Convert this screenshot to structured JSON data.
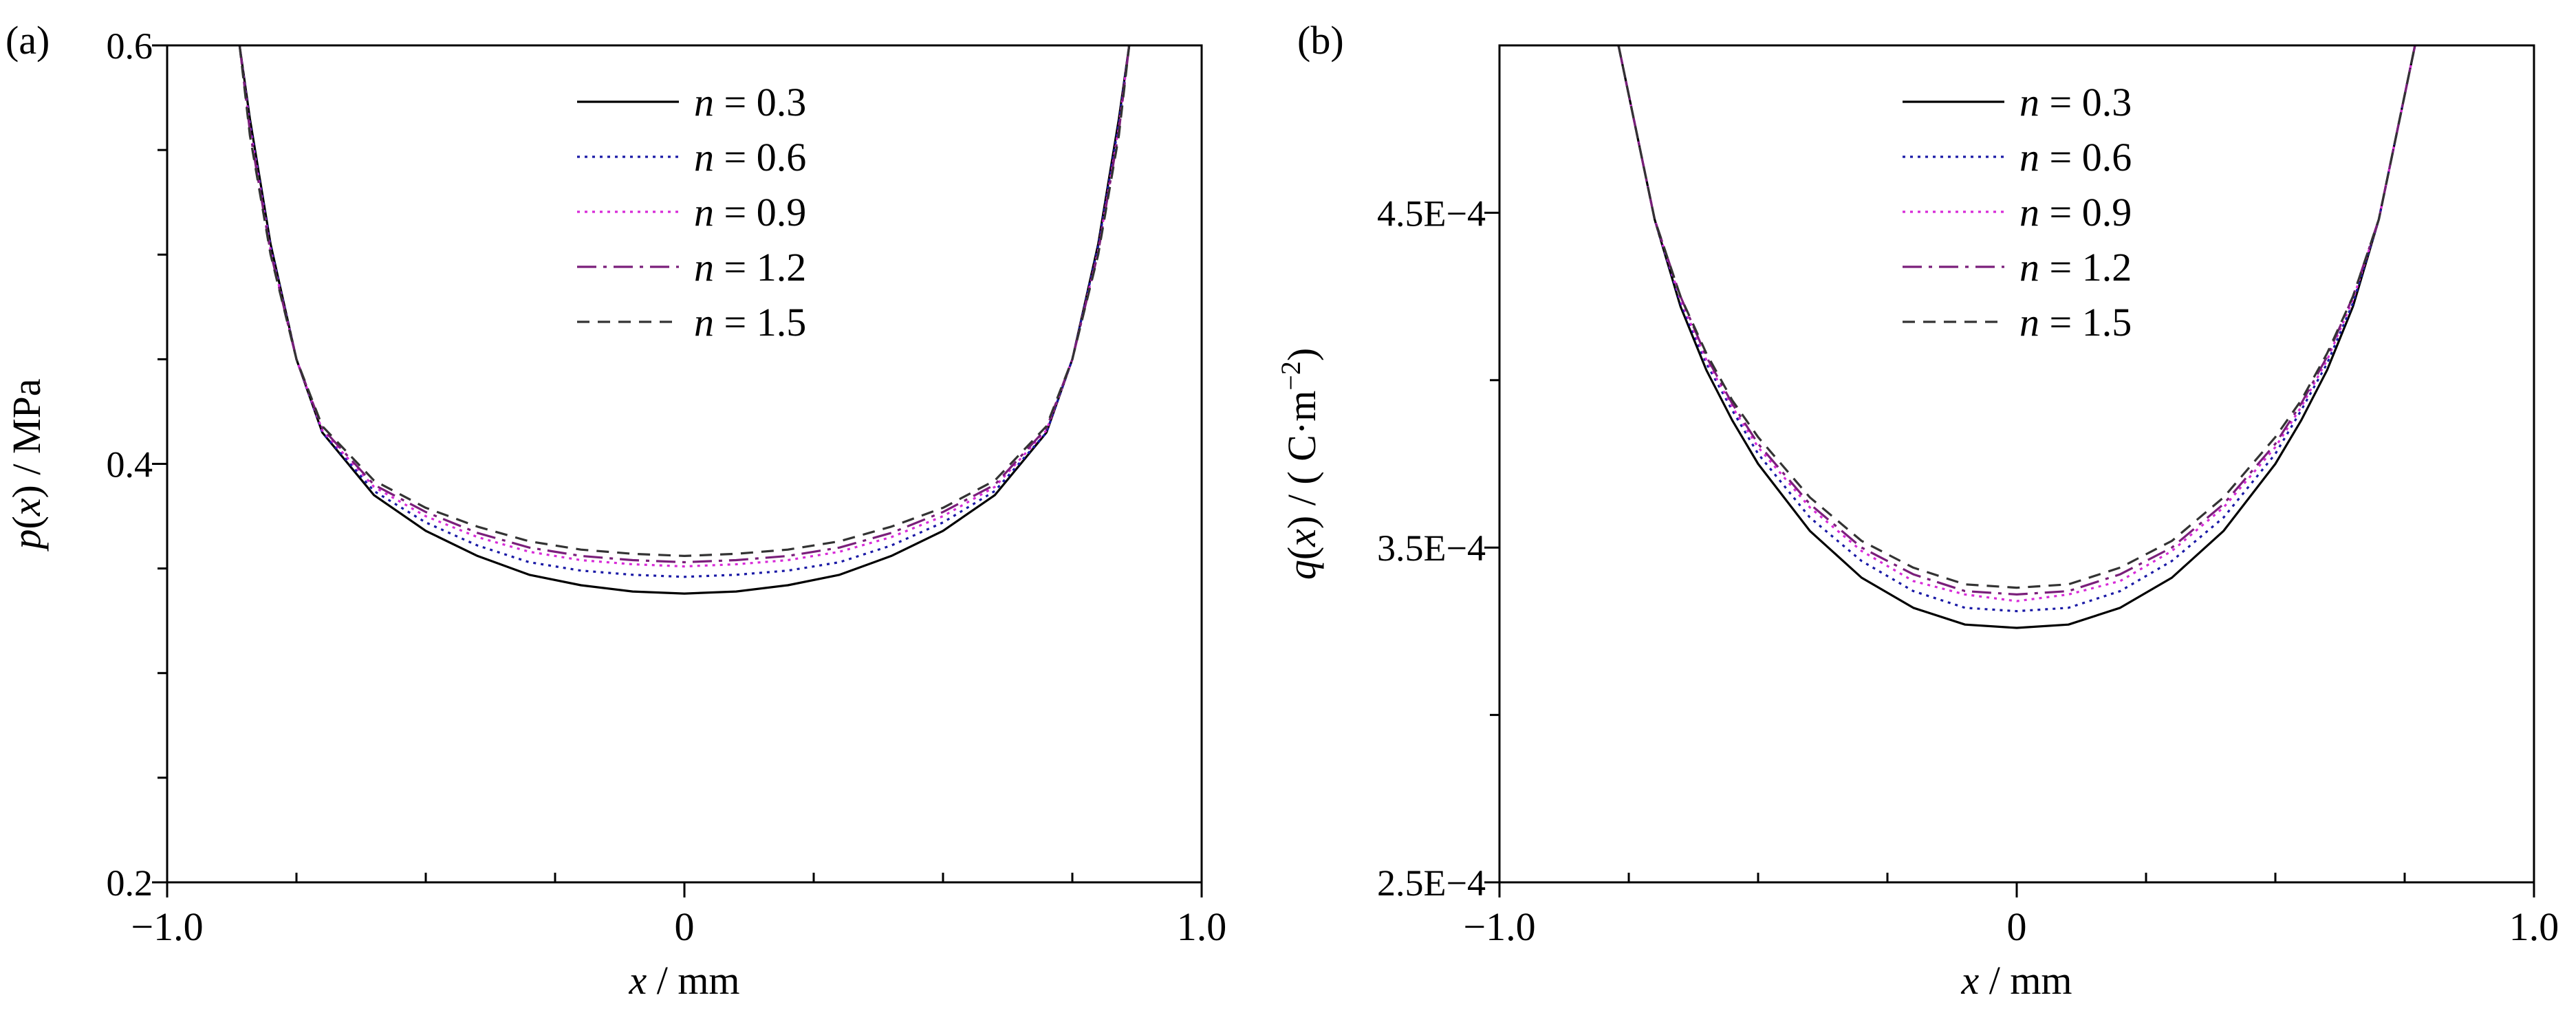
{
  "chart_data": [
    {
      "type": "line",
      "panel_label": "(a)",
      "xlabel": {
        "var": "x",
        "unit": "mm"
      },
      "ylabel": {
        "func": "p",
        "arg": "x",
        "unit": "MPa"
      },
      "xlim": [
        -1.0,
        1.0
      ],
      "ylim": [
        0.2,
        0.6
      ],
      "x_tick_labels": [
        {
          "v": -1.0,
          "t": "−1.0"
        },
        {
          "v": 0,
          "t": "0"
        },
        {
          "v": 1.0,
          "t": "1.0"
        }
      ],
      "x_minor_ticks": [
        -0.75,
        -0.5,
        -0.25,
        0.25,
        0.5,
        0.75
      ],
      "y_tick_labels": [
        {
          "v": 0.2,
          "t": "0.2"
        },
        {
          "v": 0.4,
          "t": "0.4"
        },
        {
          "v": 0.6,
          "t": "0.6"
        }
      ],
      "y_minor_ticks": [
        0.25,
        0.3,
        0.35,
        0.45,
        0.5,
        0.55
      ],
      "grid": false,
      "legend_position": "top-center",
      "series": [
        {
          "name": "n = 0.3",
          "var": "n",
          "value": "0.3",
          "color": "#000000",
          "dash": "solid",
          "points": [
            [
              -0.86,
              0.6
            ],
            [
              -0.84,
              0.565
            ],
            [
              -0.8,
              0.505
            ],
            [
              -0.75,
              0.45
            ],
            [
              -0.7,
              0.415
            ],
            [
              -0.6,
              0.385
            ],
            [
              -0.5,
              0.368
            ],
            [
              -0.4,
              0.356
            ],
            [
              -0.3,
              0.347
            ],
            [
              -0.2,
              0.342
            ],
            [
              -0.1,
              0.339
            ],
            [
              0,
              0.338
            ],
            [
              0.1,
              0.339
            ],
            [
              0.2,
              0.342
            ],
            [
              0.3,
              0.347
            ],
            [
              0.4,
              0.356
            ],
            [
              0.5,
              0.368
            ],
            [
              0.6,
              0.385
            ],
            [
              0.7,
              0.415
            ],
            [
              0.75,
              0.45
            ],
            [
              0.8,
              0.505
            ],
            [
              0.84,
              0.565
            ],
            [
              0.86,
              0.6
            ]
          ]
        },
        {
          "name": "n = 0.6",
          "var": "n",
          "value": "0.6",
          "color": "#1a1aa6",
          "dash": "dotted",
          "points": [
            [
              -0.86,
              0.6
            ],
            [
              -0.84,
              0.563
            ],
            [
              -0.8,
              0.504
            ],
            [
              -0.75,
              0.45
            ],
            [
              -0.7,
              0.415
            ],
            [
              -0.6,
              0.387
            ],
            [
              -0.5,
              0.372
            ],
            [
              -0.4,
              0.361
            ],
            [
              -0.3,
              0.353
            ],
            [
              -0.2,
              0.349
            ],
            [
              -0.1,
              0.347
            ],
            [
              0,
              0.346
            ],
            [
              0.1,
              0.347
            ],
            [
              0.2,
              0.349
            ],
            [
              0.3,
              0.353
            ],
            [
              0.4,
              0.361
            ],
            [
              0.5,
              0.372
            ],
            [
              0.6,
              0.387
            ],
            [
              0.7,
              0.415
            ],
            [
              0.75,
              0.45
            ],
            [
              0.8,
              0.504
            ],
            [
              0.84,
              0.563
            ],
            [
              0.86,
              0.6
            ]
          ]
        },
        {
          "name": "n = 0.9",
          "var": "n",
          "value": "0.9",
          "color": "#d82bd8",
          "dash": "dotted",
          "points": [
            [
              -0.86,
              0.6
            ],
            [
              -0.84,
              0.561
            ],
            [
              -0.8,
              0.502
            ],
            [
              -0.75,
              0.45
            ],
            [
              -0.7,
              0.416
            ],
            [
              -0.6,
              0.389
            ],
            [
              -0.5,
              0.375
            ],
            [
              -0.4,
              0.365
            ],
            [
              -0.3,
              0.358
            ],
            [
              -0.2,
              0.354
            ],
            [
              -0.1,
              0.352
            ],
            [
              0,
              0.351
            ],
            [
              0.1,
              0.352
            ],
            [
              0.2,
              0.354
            ],
            [
              0.3,
              0.358
            ],
            [
              0.4,
              0.365
            ],
            [
              0.5,
              0.375
            ],
            [
              0.6,
              0.389
            ],
            [
              0.7,
              0.416
            ],
            [
              0.75,
              0.45
            ],
            [
              0.8,
              0.502
            ],
            [
              0.84,
              0.561
            ],
            [
              0.86,
              0.6
            ]
          ]
        },
        {
          "name": "n = 1.2",
          "var": "n",
          "value": "1.2",
          "color": "#7a1f7a",
          "dash": "dashdot",
          "points": [
            [
              -0.86,
              0.6
            ],
            [
              -0.84,
              0.559
            ],
            [
              -0.8,
              0.501
            ],
            [
              -0.75,
              0.45
            ],
            [
              -0.7,
              0.417
            ],
            [
              -0.6,
              0.39
            ],
            [
              -0.5,
              0.377
            ],
            [
              -0.4,
              0.367
            ],
            [
              -0.3,
              0.36
            ],
            [
              -0.2,
              0.356
            ],
            [
              -0.1,
              0.354
            ],
            [
              0,
              0.353
            ],
            [
              0.1,
              0.354
            ],
            [
              0.2,
              0.356
            ],
            [
              0.3,
              0.36
            ],
            [
              0.4,
              0.367
            ],
            [
              0.5,
              0.377
            ],
            [
              0.6,
              0.39
            ],
            [
              0.7,
              0.417
            ],
            [
              0.75,
              0.45
            ],
            [
              0.8,
              0.501
            ],
            [
              0.84,
              0.559
            ],
            [
              0.86,
              0.6
            ]
          ]
        },
        {
          "name": "n = 1.5",
          "var": "n",
          "value": "1.5",
          "color": "#333333",
          "dash": "dashed",
          "points": [
            [
              -0.86,
              0.6
            ],
            [
              -0.84,
              0.557
            ],
            [
              -0.8,
              0.5
            ],
            [
              -0.75,
              0.45
            ],
            [
              -0.7,
              0.418
            ],
            [
              -0.6,
              0.392
            ],
            [
              -0.5,
              0.379
            ],
            [
              -0.4,
              0.37
            ],
            [
              -0.3,
              0.363
            ],
            [
              -0.2,
              0.359
            ],
            [
              -0.1,
              0.357
            ],
            [
              0,
              0.356
            ],
            [
              0.1,
              0.357
            ],
            [
              0.2,
              0.359
            ],
            [
              0.3,
              0.363
            ],
            [
              0.4,
              0.37
            ],
            [
              0.5,
              0.379
            ],
            [
              0.6,
              0.392
            ],
            [
              0.7,
              0.418
            ],
            [
              0.75,
              0.45
            ],
            [
              0.8,
              0.5
            ],
            [
              0.84,
              0.557
            ],
            [
              0.86,
              0.6
            ]
          ]
        }
      ]
    },
    {
      "type": "line",
      "panel_label": "(b)",
      "xlabel": {
        "var": "x",
        "unit": "mm"
      },
      "ylabel": {
        "func": "q",
        "arg": "x",
        "unit": "( C·m",
        "unit_exp": "−2",
        "unit_close": ")"
      },
      "xlim": [
        -1.0,
        1.0
      ],
      "ylim": [
        0.00025,
        0.0005
      ],
      "x_tick_labels": [
        {
          "v": -1.0,
          "t": "−1.0"
        },
        {
          "v": 0,
          "t": "0"
        },
        {
          "v": 1.0,
          "t": "1.0"
        }
      ],
      "x_minor_ticks": [
        -0.75,
        -0.5,
        -0.25,
        0.25,
        0.5,
        0.75
      ],
      "y_tick_labels": [
        {
          "v": 0.00025,
          "t": "2.5E−4"
        },
        {
          "v": 0.00035,
          "t": "3.5E−4"
        },
        {
          "v": 0.00045,
          "t": "4.5E−4"
        }
      ],
      "y_minor_ticks": [
        0.0003,
        0.0004
      ],
      "grid": false,
      "legend_position": "top-center",
      "series": [
        {
          "name": "n = 0.3",
          "var": "n",
          "value": "0.3",
          "color": "#000000",
          "dash": "solid",
          "points": [
            [
              -0.77,
              0.0005
            ],
            [
              -0.7,
              0.000448
            ],
            [
              -0.65,
              0.000422
            ],
            [
              -0.6,
              0.000403
            ],
            [
              -0.55,
              0.000388
            ],
            [
              -0.5,
              0.000375
            ],
            [
              -0.4,
              0.000355
            ],
            [
              -0.3,
              0.000341
            ],
            [
              -0.2,
              0.000332
            ],
            [
              -0.1,
              0.000327
            ],
            [
              0,
              0.000326
            ],
            [
              0.1,
              0.000327
            ],
            [
              0.2,
              0.000332
            ],
            [
              0.3,
              0.000341
            ],
            [
              0.4,
              0.000355
            ],
            [
              0.5,
              0.000375
            ],
            [
              0.55,
              0.000388
            ],
            [
              0.6,
              0.000403
            ],
            [
              0.65,
              0.000422
            ],
            [
              0.7,
              0.000448
            ],
            [
              0.77,
              0.0005
            ]
          ]
        },
        {
          "name": "n = 0.6",
          "var": "n",
          "value": "0.6",
          "color": "#1a1aa6",
          "dash": "dotted",
          "points": [
            [
              -0.77,
              0.0005
            ],
            [
              -0.7,
              0.000448
            ],
            [
              -0.65,
              0.000423
            ],
            [
              -0.6,
              0.000405
            ],
            [
              -0.55,
              0.000391
            ],
            [
              -0.5,
              0.000378
            ],
            [
              -0.4,
              0.000359
            ],
            [
              -0.3,
              0.000346
            ],
            [
              -0.2,
              0.000337
            ],
            [
              -0.1,
              0.000332
            ],
            [
              0,
              0.000331
            ],
            [
              0.1,
              0.000332
            ],
            [
              0.2,
              0.000337
            ],
            [
              0.3,
              0.000346
            ],
            [
              0.4,
              0.000359
            ],
            [
              0.5,
              0.000378
            ],
            [
              0.55,
              0.000391
            ],
            [
              0.6,
              0.000405
            ],
            [
              0.65,
              0.000423
            ],
            [
              0.7,
              0.000448
            ],
            [
              0.77,
              0.0005
            ]
          ]
        },
        {
          "name": "n = 0.9",
          "var": "n",
          "value": "0.9",
          "color": "#d82bd8",
          "dash": "dotted",
          "points": [
            [
              -0.77,
              0.0005
            ],
            [
              -0.7,
              0.000448
            ],
            [
              -0.65,
              0.000424
            ],
            [
              -0.6,
              0.000406
            ],
            [
              -0.55,
              0.000392
            ],
            [
              -0.5,
              0.00038
            ],
            [
              -0.4,
              0.000362
            ],
            [
              -0.3,
              0.000349
            ],
            [
              -0.2,
              0.00034
            ],
            [
              -0.1,
              0.000336
            ],
            [
              0,
              0.000334
            ],
            [
              0.1,
              0.000336
            ],
            [
              0.2,
              0.00034
            ],
            [
              0.3,
              0.000349
            ],
            [
              0.4,
              0.000362
            ],
            [
              0.5,
              0.00038
            ],
            [
              0.55,
              0.000392
            ],
            [
              0.6,
              0.000406
            ],
            [
              0.65,
              0.000424
            ],
            [
              0.7,
              0.000448
            ],
            [
              0.77,
              0.0005
            ]
          ]
        },
        {
          "name": "n = 1.2",
          "var": "n",
          "value": "1.2",
          "color": "#7a1f7a",
          "dash": "dashdot",
          "points": [
            [
              -0.77,
              0.0005
            ],
            [
              -0.7,
              0.000448
            ],
            [
              -0.65,
              0.000425
            ],
            [
              -0.6,
              0.000407
            ],
            [
              -0.55,
              0.000393
            ],
            [
              -0.5,
              0.000381
            ],
            [
              -0.4,
              0.000363
            ],
            [
              -0.3,
              0.00035
            ],
            [
              -0.2,
              0.000342
            ],
            [
              -0.1,
              0.000337
            ],
            [
              0,
              0.000336
            ],
            [
              0.1,
              0.000337
            ],
            [
              0.2,
              0.000342
            ],
            [
              0.3,
              0.00035
            ],
            [
              0.4,
              0.000363
            ],
            [
              0.5,
              0.000381
            ],
            [
              0.55,
              0.000393
            ],
            [
              0.6,
              0.000407
            ],
            [
              0.65,
              0.000425
            ],
            [
              0.7,
              0.000448
            ],
            [
              0.77,
              0.0005
            ]
          ]
        },
        {
          "name": "n = 1.5",
          "var": "n",
          "value": "1.5",
          "color": "#333333",
          "dash": "dashed",
          "points": [
            [
              -0.77,
              0.0005
            ],
            [
              -0.7,
              0.000448
            ],
            [
              -0.65,
              0.000425
            ],
            [
              -0.6,
              0.000408
            ],
            [
              -0.55,
              0.000394
            ],
            [
              -0.5,
              0.000383
            ],
            [
              -0.4,
              0.000365
            ],
            [
              -0.3,
              0.000352
            ],
            [
              -0.2,
              0.000344
            ],
            [
              -0.1,
              0.000339
            ],
            [
              0,
              0.000338
            ],
            [
              0.1,
              0.000339
            ],
            [
              0.2,
              0.000344
            ],
            [
              0.3,
              0.000352
            ],
            [
              0.4,
              0.000365
            ],
            [
              0.5,
              0.000383
            ],
            [
              0.55,
              0.000394
            ],
            [
              0.6,
              0.000408
            ],
            [
              0.65,
              0.000425
            ],
            [
              0.7,
              0.000448
            ],
            [
              0.77,
              0.0005
            ]
          ]
        }
      ]
    }
  ]
}
